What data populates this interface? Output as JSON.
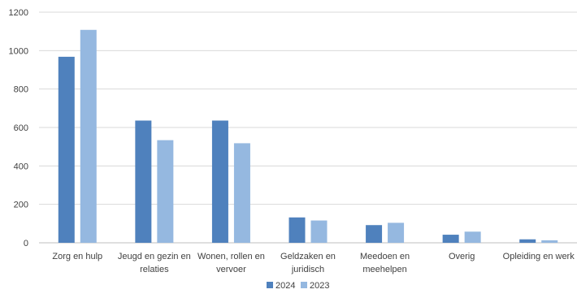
{
  "chart_data": {
    "type": "bar",
    "categories": [
      [
        "Zorg en hulp"
      ],
      [
        "Jeugd en gezin en",
        "relaties"
      ],
      [
        "Wonen, rollen en",
        "vervoer"
      ],
      [
        "Geldzaken en",
        "juridisch"
      ],
      [
        "Meedoen en",
        "meehelpen"
      ],
      [
        "Overig"
      ],
      [
        "Opleiding en werk"
      ]
    ],
    "series": [
      {
        "name": "2024",
        "color": "#4f81bd",
        "values": [
          968,
          636,
          636,
          132,
          92,
          42,
          18
        ]
      },
      {
        "name": "2023",
        "color": "#95b8e0",
        "values": [
          1108,
          534,
          518,
          116,
          104,
          58,
          13
        ]
      }
    ],
    "ylim": [
      0,
      1200
    ],
    "yticks": [
      0,
      200,
      400,
      600,
      800,
      1000,
      1200
    ],
    "grid": true,
    "legend_position": "bottom"
  }
}
